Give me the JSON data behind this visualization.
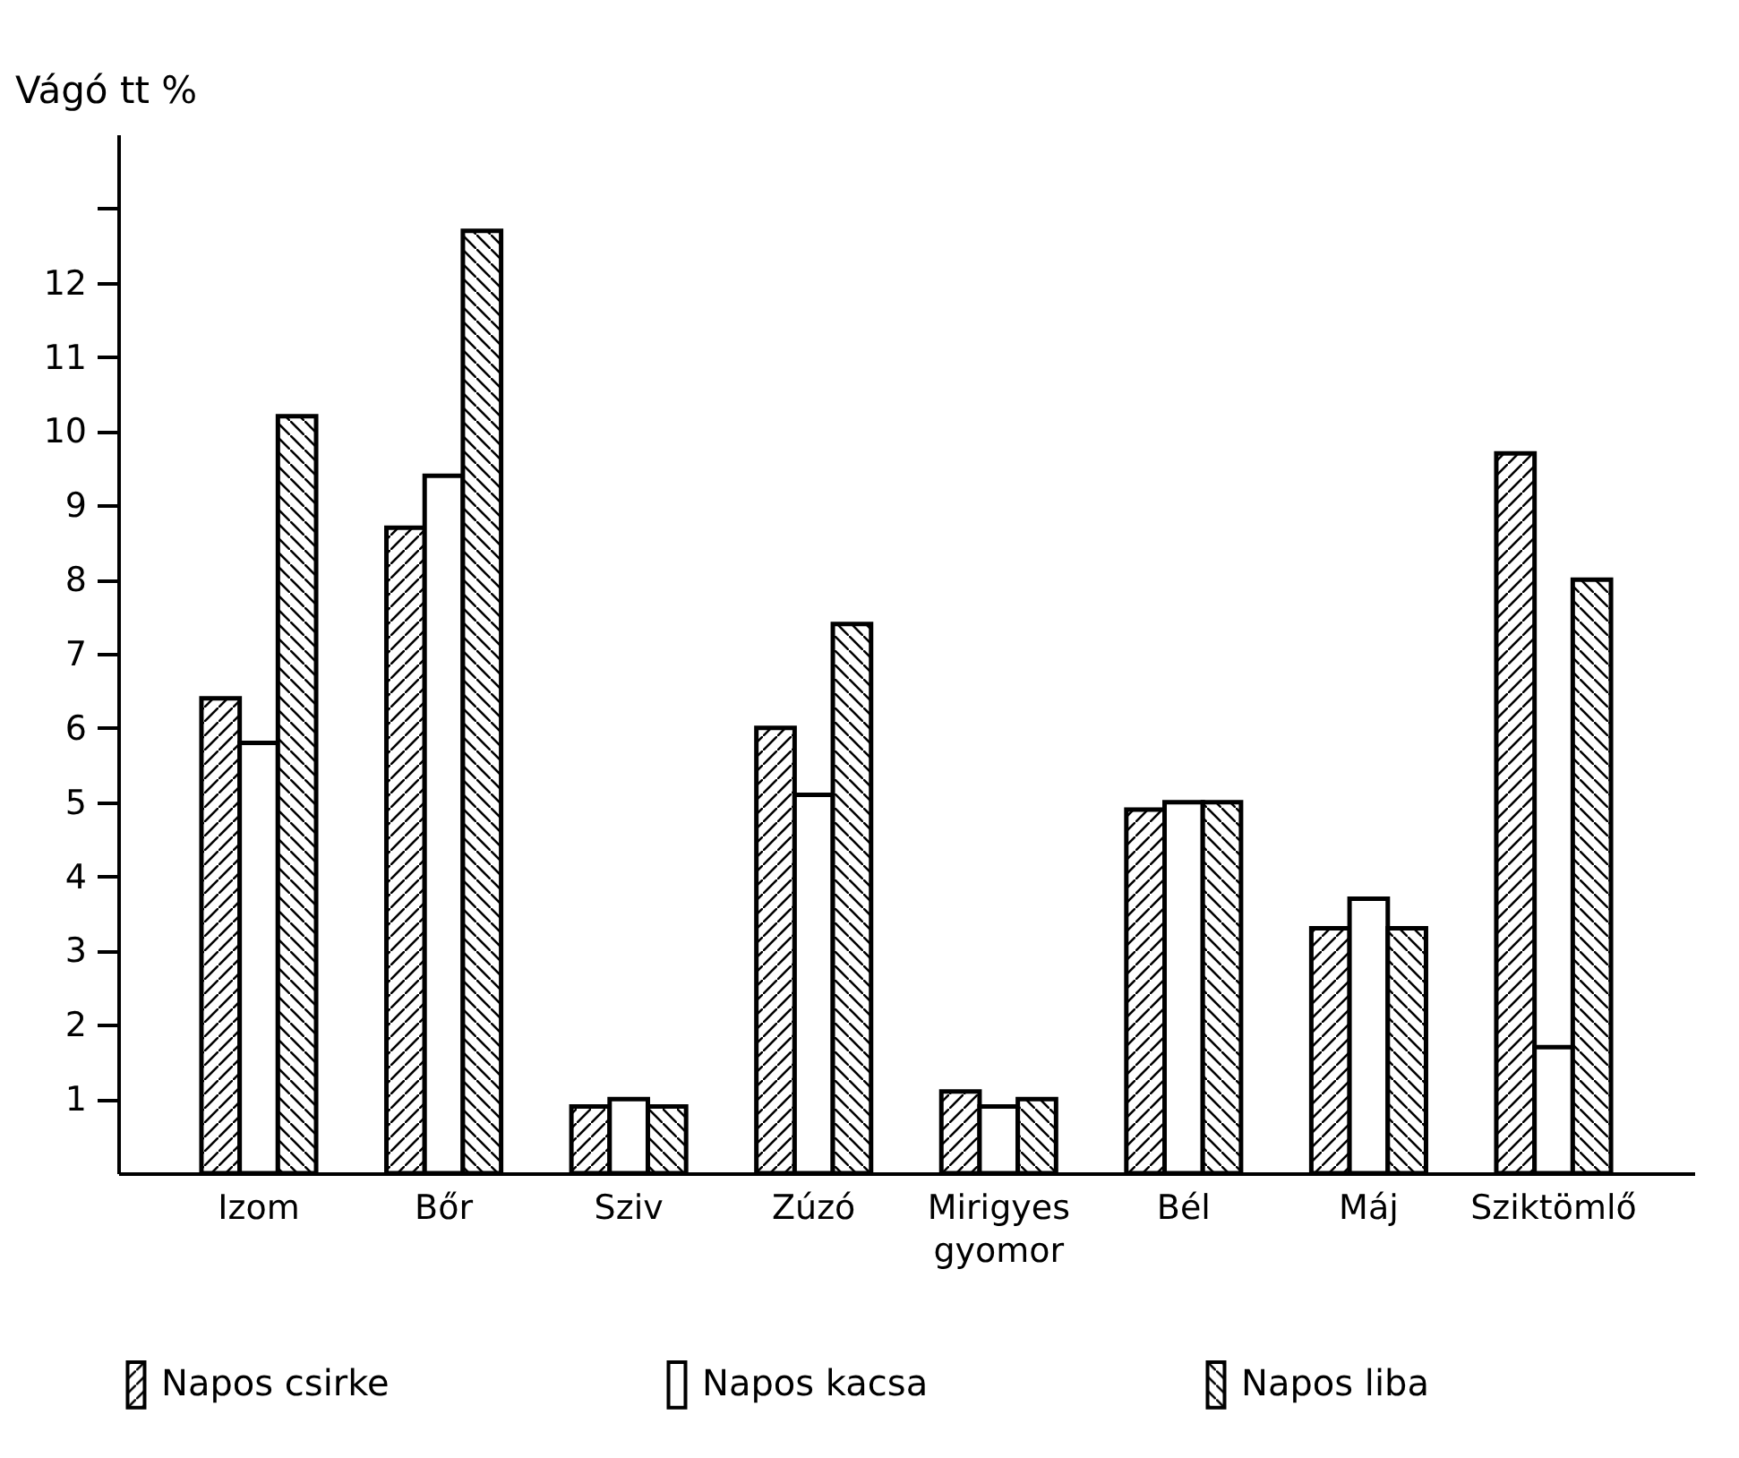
{
  "chart_data": {
    "type": "bar",
    "ylabel": "Vágó tt %",
    "categories": [
      "Izom",
      "Bőr",
      "Sziv",
      "Zúzó",
      "Mirigyes gyomor",
      "Bél",
      "Máj",
      "Sziktömlő"
    ],
    "series": [
      {
        "name": "Napos csirke",
        "color": "#000000",
        "values": [
          6.4,
          8.7,
          0.9,
          6.0,
          1.1,
          4.9,
          3.3,
          9.7
        ]
      },
      {
        "name": "Napos kacsa",
        "color": "#000000",
        "values": [
          5.8,
          9.4,
          1.0,
          5.1,
          0.9,
          5.0,
          3.7,
          1.7
        ]
      },
      {
        "name": "Napos liba",
        "color": "#000000",
        "values": [
          10.2,
          12.7,
          0.9,
          7.4,
          1.0,
          5.0,
          3.3,
          8.0
        ]
      }
    ],
    "ylim": [
      0,
      14
    ],
    "yticks": [
      1,
      2,
      3,
      4,
      5,
      6,
      7,
      8,
      9,
      10,
      11,
      12,
      {
        "value": 13,
        "label": null
      }
    ],
    "grid": false,
    "legend": "bottom"
  }
}
